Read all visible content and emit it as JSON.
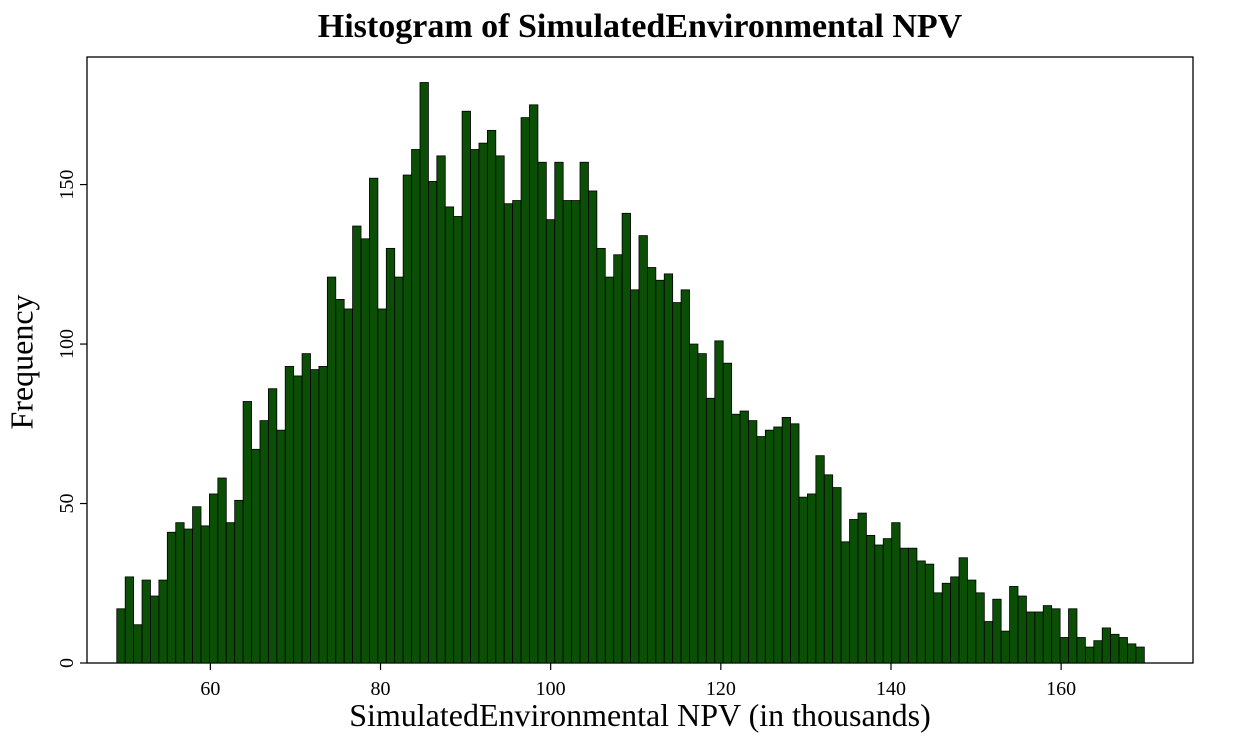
{
  "chart_data": {
    "type": "bar",
    "title": "Histogram of SimulatedEnvironmental NPV",
    "xlabel": "SimulatedEnvironmental NPV (in thousands)",
    "ylabel": "Frequency",
    "xlim": [
      45.5,
      175.5
    ],
    "ylim": [
      0,
      190
    ],
    "xticks": [
      60,
      80,
      100,
      120,
      140,
      160
    ],
    "yticks": [
      0,
      50,
      100,
      150
    ],
    "bin_start": 49,
    "bin_width": 0.99,
    "bar_color": "#0b4f06",
    "edge_color": "#000000",
    "grid": false,
    "values": [
      17,
      27,
      12,
      26,
      21,
      26,
      41,
      44,
      42,
      49,
      43,
      53,
      58,
      44,
      51,
      82,
      67,
      76,
      86,
      73,
      93,
      90,
      97,
      92,
      93,
      121,
      114,
      111,
      137,
      133,
      152,
      111,
      130,
      121,
      153,
      161,
      182,
      151,
      159,
      143,
      140,
      173,
      161,
      163,
      167,
      159,
      144,
      145,
      171,
      175,
      157,
      139,
      157,
      145,
      145,
      157,
      148,
      130,
      121,
      128,
      141,
      117,
      134,
      124,
      120,
      122,
      113,
      117,
      100,
      97,
      83,
      101,
      94,
      78,
      79,
      76,
      71,
      73,
      74,
      77,
      75,
      52,
      53,
      65,
      59,
      55,
      38,
      45,
      47,
      40,
      37,
      39,
      44,
      36,
      36,
      32,
      31,
      22,
      25,
      27,
      33,
      26,
      22,
      13,
      20,
      10,
      24,
      21,
      16,
      16,
      18,
      17,
      8,
      17,
      8,
      5,
      7,
      11,
      9,
      8,
      6,
      5
    ]
  }
}
